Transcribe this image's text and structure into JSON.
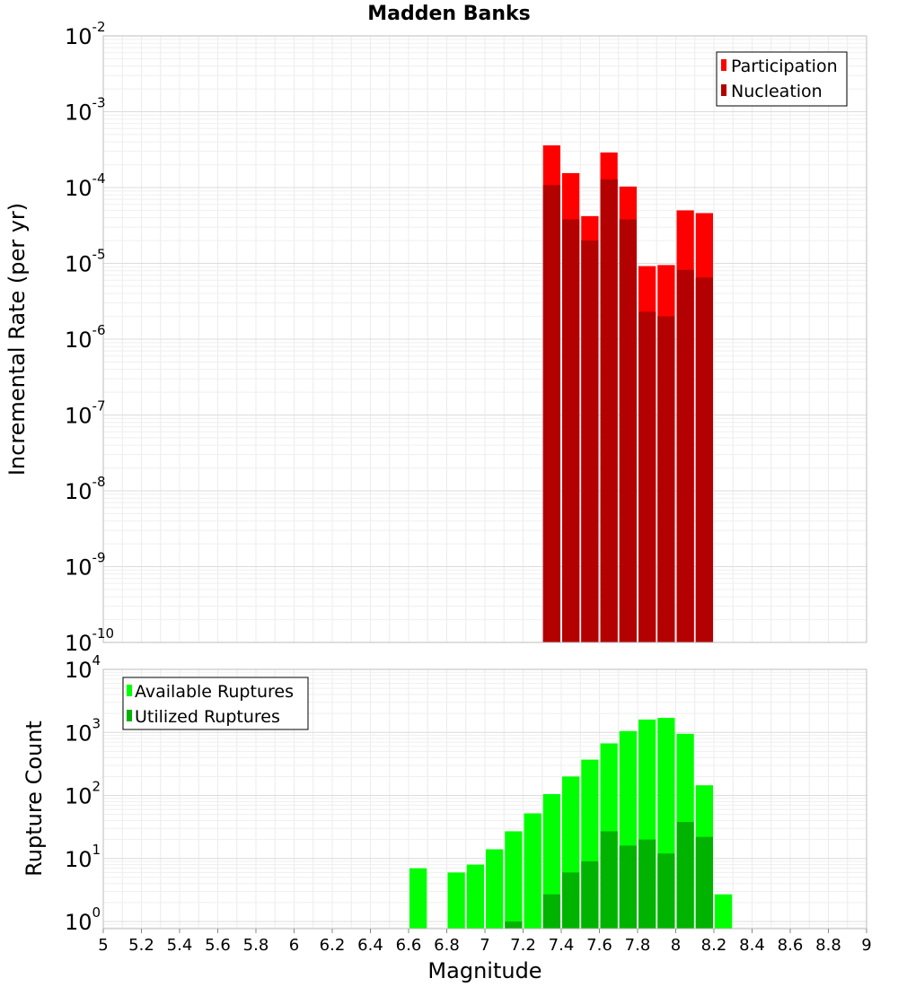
{
  "chart_data": [
    {
      "type": "bar",
      "title": "Madden Banks",
      "ylabel": "Incremental Rate (per yr)",
      "xlabel": "",
      "yscale": "log",
      "ylim": [
        1e-10,
        0.01
      ],
      "xlim": [
        5,
        9
      ],
      "bar_width": 0.1,
      "grid": true,
      "legend_position": "top-right",
      "y_ticks": [
        {
          "base": "10",
          "exp": "-10"
        },
        {
          "base": "10",
          "exp": "-9"
        },
        {
          "base": "10",
          "exp": "-8"
        },
        {
          "base": "10",
          "exp": "-7"
        },
        {
          "base": "10",
          "exp": "-6"
        },
        {
          "base": "10",
          "exp": "-5"
        },
        {
          "base": "10",
          "exp": "-4"
        },
        {
          "base": "10",
          "exp": "-3"
        },
        {
          "base": "10",
          "exp": "-2"
        }
      ],
      "x": [
        7.35,
        7.45,
        7.55,
        7.65,
        7.75,
        7.85,
        7.95,
        8.05,
        8.15
      ],
      "series": [
        {
          "name": "Participation",
          "color": "#ff0000",
          "values": [
            0.00036,
            0.000155,
            4.2e-05,
            0.00029,
            0.000103,
            9.2e-06,
            9.5e-06,
            5e-05,
            4.6e-05
          ]
        },
        {
          "name": "Nucleation",
          "color": "#b30000",
          "values": [
            0.000108,
            3.8e-05,
            2e-05,
            0.000128,
            3.8e-05,
            2.3e-06,
            2e-06,
            8.2e-06,
            6.5e-06
          ]
        }
      ]
    },
    {
      "type": "bar",
      "title": "",
      "ylabel": "Rupture Count",
      "xlabel": "Magnitude",
      "yscale": "log",
      "ylim": [
        0.77,
        10000
      ],
      "xlim": [
        5,
        9
      ],
      "bar_width": 0.1,
      "grid": true,
      "legend_position": "top-left",
      "y_ticks": [
        {
          "base": "10",
          "exp": "0",
          "value": 1
        },
        {
          "base": "10",
          "exp": "1",
          "value": 10
        },
        {
          "base": "10",
          "exp": "2",
          "value": 100
        },
        {
          "base": "10",
          "exp": "3",
          "value": 1000
        },
        {
          "base": "10",
          "exp": "4",
          "value": 10000
        }
      ],
      "x_ticks": [
        "5",
        "5.2",
        "5.4",
        "5.6",
        "5.8",
        "6",
        "6.2",
        "6.4",
        "6.6",
        "6.8",
        "7",
        "7.2",
        "7.4",
        "7.6",
        "7.8",
        "8",
        "8.2",
        "8.4",
        "8.6",
        "8.8",
        "9"
      ],
      "series": [
        {
          "name": "Available Ruptures",
          "color": "#00ff00",
          "x": [
            6.65,
            6.85,
            6.95,
            7.05,
            7.15,
            7.25,
            7.35,
            7.45,
            7.55,
            7.65,
            7.75,
            7.85,
            7.95,
            8.05,
            8.15,
            8.25
          ],
          "values": [
            7,
            6,
            8,
            14,
            27,
            52,
            105,
            200,
            370,
            670,
            1050,
            1600,
            1700,
            950,
            145,
            2.7
          ]
        },
        {
          "name": "Utilized Ruptures",
          "color": "#00b300",
          "x": [
            7.15,
            7.35,
            7.45,
            7.55,
            7.65,
            7.75,
            7.85,
            7.95,
            8.05,
            8.15
          ],
          "values": [
            1,
            2.7,
            6,
            9,
            27,
            16,
            20,
            12,
            38,
            22
          ]
        }
      ]
    }
  ]
}
